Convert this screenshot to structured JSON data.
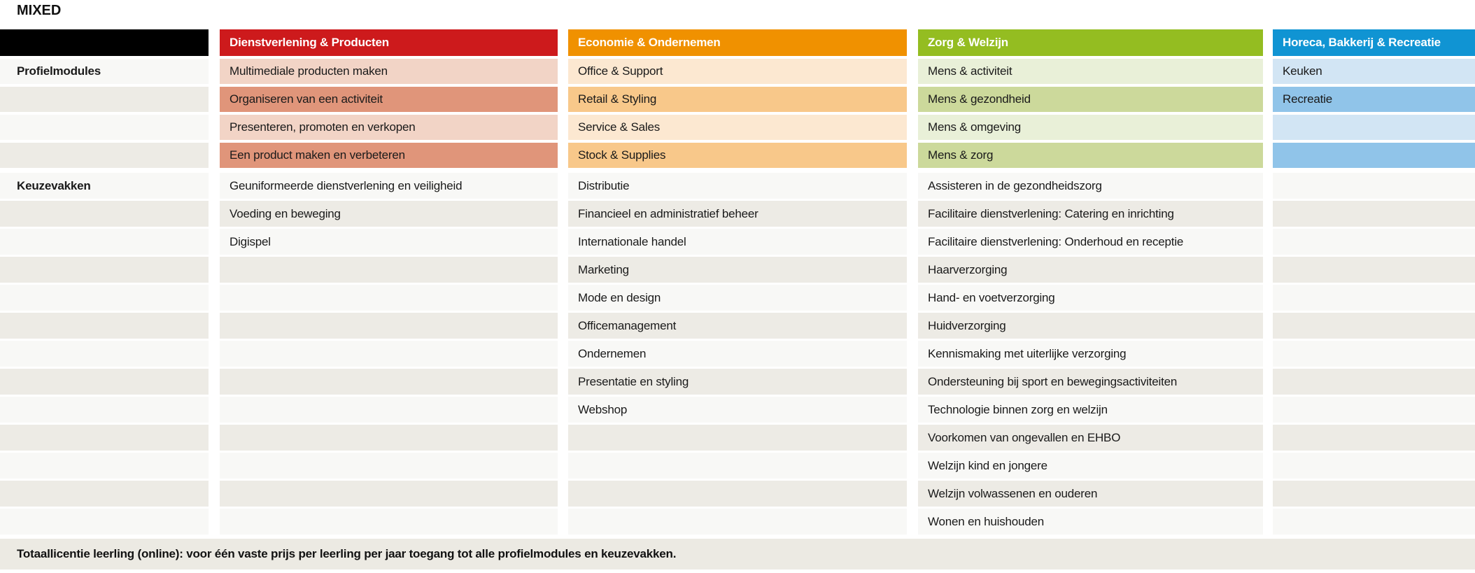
{
  "title": "MIXED",
  "section_labels": {
    "profielmodules": "Profielmodules",
    "keuzevakken": "Keuzevakken"
  },
  "footer": "Totaallicentie leerling (online): voor één vaste prijs per leerling per jaar toegang tot alle profielmodules en keuzevakken.",
  "neutral_colors": {
    "row_light": "#f8f8f6",
    "row_dark": "#edebe5",
    "label_header_bg": "#000000",
    "footer_bg": "#eceae3"
  },
  "row_counts": {
    "profielmodules": 4,
    "keuzevakken": 13
  },
  "columns": [
    {
      "id": "dienstverlening-producten",
      "header": "Dienstverlening & Producten",
      "header_color": "#cd1a1c",
      "row_light": "#f2d4c6",
      "row_dark": "#e0957a",
      "profielmodules": [
        "Multimediale producten maken",
        "Organiseren van een activiteit",
        "Presenteren, promoten en verkopen",
        "Een product maken en verbeteren"
      ],
      "keuzevakken": [
        "Geuniformeerde dienstverlening en veiligheid",
        "Voeding en beweging",
        "Digispel"
      ]
    },
    {
      "id": "economie-ondernemen",
      "header": "Economie & Ondernemen",
      "header_color": "#f09100",
      "row_light": "#fce8d1",
      "row_dark": "#f8c88a",
      "profielmodules": [
        "Office & Support",
        "Retail & Styling",
        "Service & Sales",
        "Stock & Supplies"
      ],
      "keuzevakken": [
        "Distributie",
        "Financieel en administratief beheer",
        "Internationale handel",
        "Marketing",
        "Mode en design",
        "Officemanagement",
        "Ondernemen",
        "Presentatie en styling",
        "Webshop"
      ]
    },
    {
      "id": "zorg-welzijn",
      "header": "Zorg & Welzijn",
      "header_color": "#94bd21",
      "row_light": "#e9f0d8",
      "row_dark": "#ccd99b",
      "profielmodules": [
        "Mens & activiteit",
        "Mens & gezondheid",
        "Mens & omgeving",
        "Mens & zorg"
      ],
      "keuzevakken": [
        "Assisteren in de gezondheidszorg",
        "Facilitaire dienstverlening: Catering en inrichting",
        "Facilitaire dienstverlening: Onderhoud en receptie",
        "Haarverzorging",
        "Hand- en voetverzorging",
        "Huidverzorging",
        "Kennismaking met uiterlijke verzorging",
        "Ondersteuning bij sport en bewegingsactiviteiten",
        "Technologie binnen zorg en welzijn",
        "Voorkomen van ongevallen en EHBO",
        "Welzijn kind en jongere",
        "Welzijn volwassenen en ouderen",
        "Wonen en huishouden"
      ]
    },
    {
      "id": "horeca-bakkerij-recreatie",
      "header": "Horeca, Bakkerij & Recreatie",
      "header_color": "#1094d3",
      "row_light": "#d2e5f4",
      "row_dark": "#90c4e9",
      "profielmodules": [
        "Keuken",
        "Recreatie"
      ],
      "keuzevakken": []
    }
  ]
}
